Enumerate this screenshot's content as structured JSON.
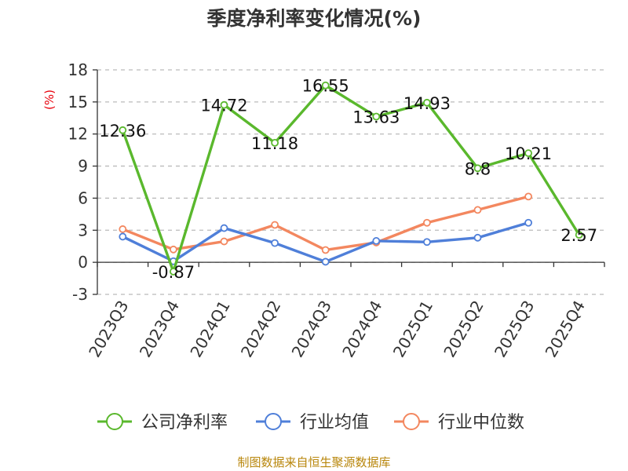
{
  "title": "季度净利率变化情况(%)",
  "source": "制图数据来自恒生聚源数据库",
  "colors": {
    "company": "#5ab82d",
    "industry_avg": "#4f7fd9",
    "industry_median": "#f3875f",
    "grid": "#bbbbbb",
    "axis": "#333333",
    "ylabel": "#e8000b"
  },
  "chart_data": {
    "type": "line",
    "title": "季度净利率变化情况(%)",
    "xlabel": "",
    "ylabel": "(%)",
    "ylim": [
      -3,
      18
    ],
    "yticks": [
      -3,
      0,
      3,
      6,
      9,
      12,
      15,
      18
    ],
    "grid": true,
    "legend_position": "bottom",
    "categories": [
      "2023Q3",
      "2023Q4",
      "2024Q1",
      "2024Q2",
      "2024Q3",
      "2024Q4",
      "2025Q1",
      "2025Q2",
      "2025Q3",
      "2025Q4"
    ],
    "series": [
      {
        "name": "公司净利率",
        "color": "#5ab82d",
        "values": [
          12.36,
          -0.87,
          14.72,
          11.18,
          16.55,
          13.63,
          14.93,
          8.8,
          10.21,
          2.57
        ],
        "labels": [
          "12.36",
          "-0.87",
          "14.72",
          "11.18",
          "16.55",
          "13.63",
          "14.93",
          "8.8",
          "10.21",
          "2.57"
        ]
      },
      {
        "name": "行业均值",
        "color": "#4f7fd9",
        "values": [
          2.4,
          0.1,
          3.2,
          1.8,
          0.05,
          2.0,
          1.9,
          2.3,
          3.7,
          null
        ]
      },
      {
        "name": "行业中位数",
        "color": "#f3875f",
        "values": [
          3.1,
          1.2,
          1.95,
          3.5,
          1.15,
          1.85,
          3.7,
          4.9,
          6.15,
          null
        ]
      }
    ]
  }
}
